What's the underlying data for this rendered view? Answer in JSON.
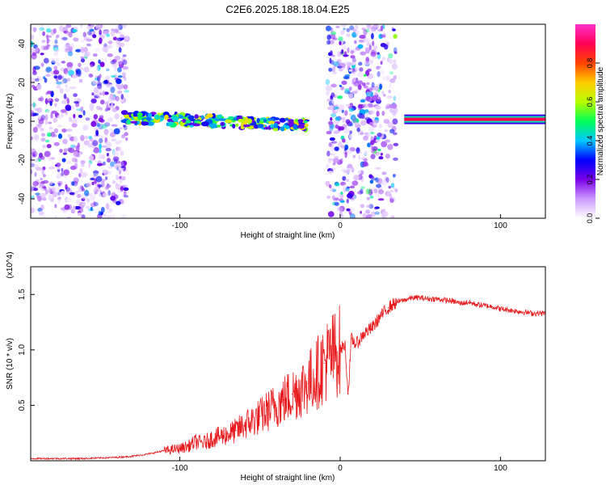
{
  "title": "C2E6.2025.188.18.04.E25",
  "chart_data": [
    {
      "type": "heatmap",
      "xlabel": "Height of straight line (km)",
      "ylabel": "Frequency (Hz)",
      "xlim": [
        -193,
        128
      ],
      "ylim": [
        -50,
        50
      ],
      "xticks": [
        -100,
        0,
        100
      ],
      "yticks": [
        -40,
        -20,
        0,
        20,
        40
      ],
      "colorbar": {
        "label": "Normalized spectral amplitude",
        "range": [
          0,
          1
        ],
        "ticks": [
          "0.0",
          "0.2",
          "0.4",
          "0.6",
          "0.8"
        ],
        "tick_values": [
          0,
          0.2,
          0.4,
          0.6,
          0.8
        ],
        "colors": [
          "#ffffff",
          "#cc99ff",
          "#7a00e6",
          "#0000ff",
          "#00c8ff",
          "#00ff55",
          "#b8ff00",
          "#ffcc00",
          "#ff4400",
          "#ff0055",
          "#ff33cc"
        ]
      },
      "regions": [
        {
          "x": [
            -193,
            -133
          ],
          "y": [
            -50,
            50
          ],
          "description": "broadband noise",
          "amplitude": 0.2
        },
        {
          "x": [
            -135,
            -20
          ],
          "y": [
            -10,
            10
          ],
          "description": "signal band near 0 Hz",
          "amplitude": 0.5
        },
        {
          "x": [
            -8,
            35
          ],
          "y": [
            -50,
            50
          ],
          "description": "broadband noise",
          "amplitude": 0.25
        },
        {
          "x": [
            40,
            128
          ],
          "y": [
            -2,
            4
          ],
          "description": "strong carrier near 2 Hz",
          "amplitude": 0.9
        }
      ]
    },
    {
      "type": "line",
      "xlabel": "Height of straight line (km)",
      "ylabel": "SNR (10 * v/v)",
      "multiplier": "(x10^4)",
      "xlim": [
        -193,
        128
      ],
      "ylim": [
        0,
        1.75
      ],
      "xticks": [
        -100,
        0,
        100
      ],
      "yticks": [
        0.5,
        1.0,
        1.5
      ],
      "ytick_labels": [
        "0.5",
        "1.0",
        "1.5"
      ],
      "color": "#e8191c",
      "series": [
        {
          "x": [
            -193,
            -180,
            -160,
            -140,
            -130,
            -120,
            -110,
            -100,
            -95,
            -90,
            -85,
            -80,
            -75,
            -70,
            -65,
            -60,
            -55,
            -50,
            -45,
            -40,
            -35,
            -30,
            -25,
            -20,
            -15,
            -10,
            -5,
            0,
            3,
            5,
            7,
            10,
            15,
            20,
            25,
            30,
            35,
            40,
            45,
            50,
            55,
            60,
            65,
            70,
            75,
            80,
            85,
            90,
            95,
            100,
            105,
            110,
            115,
            120,
            128
          ],
          "values": [
            0.02,
            0.02,
            0.02,
            0.03,
            0.04,
            0.06,
            0.09,
            0.11,
            0.13,
            0.17,
            0.16,
            0.2,
            0.22,
            0.24,
            0.27,
            0.32,
            0.36,
            0.4,
            0.45,
            0.5,
            0.55,
            0.6,
            0.65,
            0.7,
            0.78,
            0.88,
            0.95,
            1.0,
            1.05,
            0.6,
            1.1,
            1.05,
            1.15,
            1.2,
            1.3,
            1.38,
            1.43,
            1.45,
            1.47,
            1.47,
            1.46,
            1.46,
            1.45,
            1.44,
            1.42,
            1.43,
            1.41,
            1.4,
            1.39,
            1.37,
            1.36,
            1.35,
            1.34,
            1.33,
            1.33
          ]
        }
      ]
    }
  ]
}
